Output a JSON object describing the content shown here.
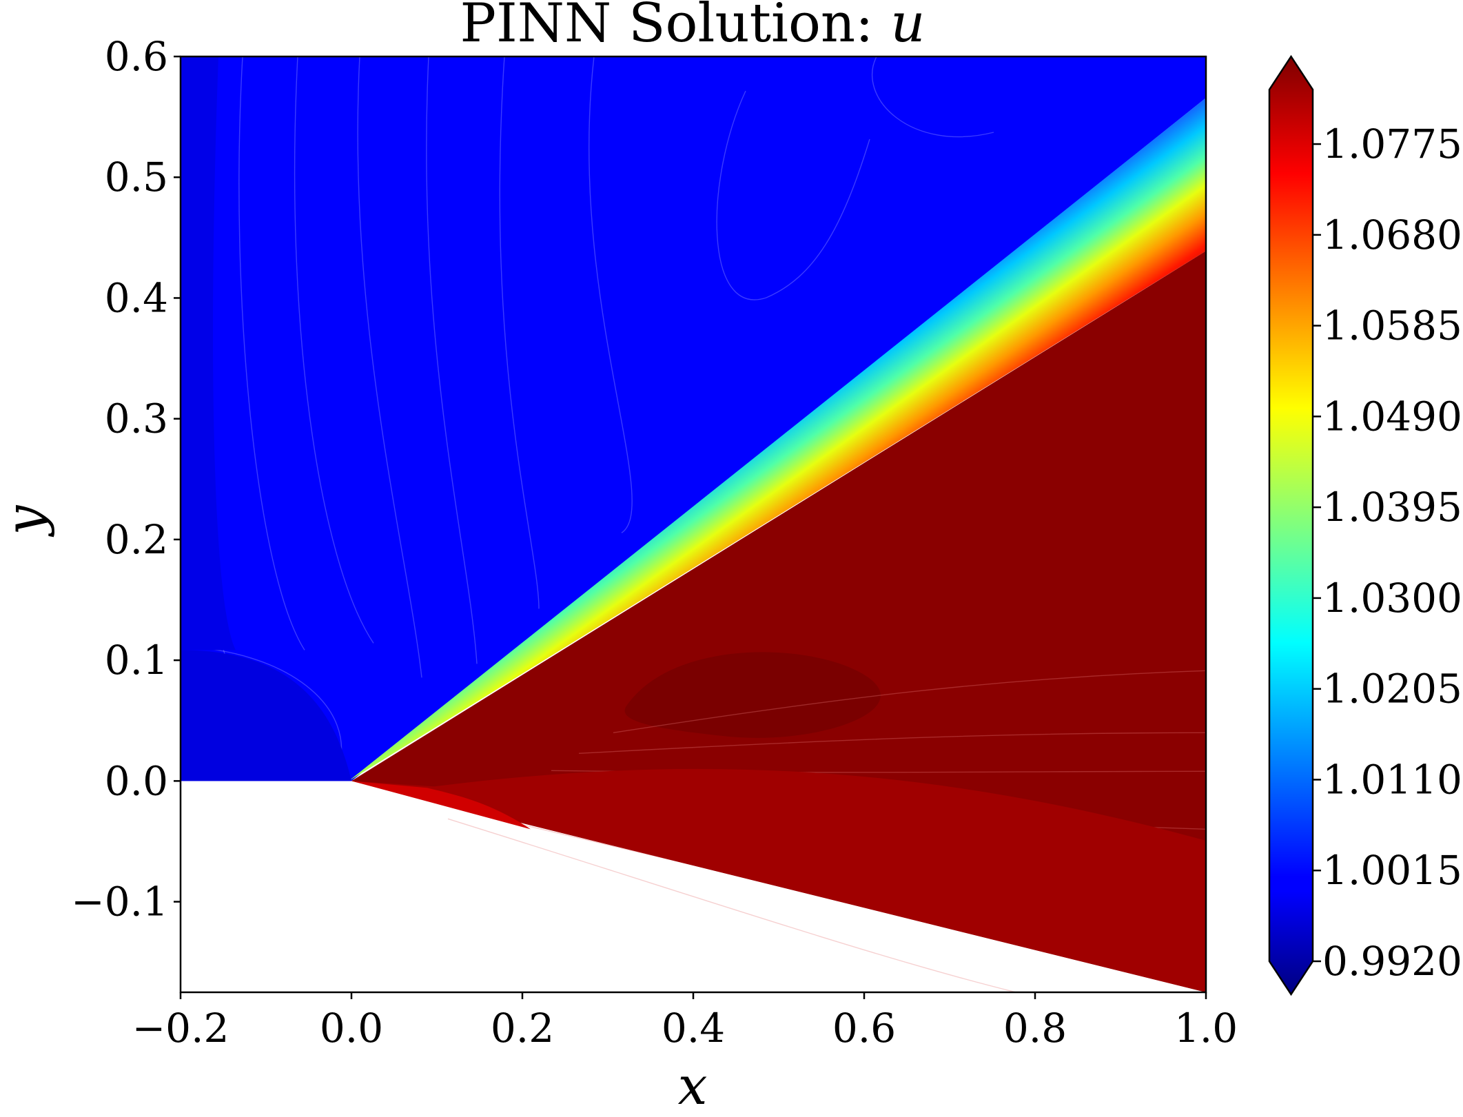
{
  "chart_data": {
    "type": "heatmap",
    "title": "PINN Solution: ",
    "title_variable": "u",
    "xlabel": "x",
    "ylabel": "y",
    "xlim": [
      -0.2,
      1.0
    ],
    "ylim": [
      -0.175,
      0.6
    ],
    "x_ticks": [
      -0.2,
      0.0,
      0.2,
      0.4,
      0.6,
      0.8,
      1.0
    ],
    "x_tick_labels": [
      "−0.2",
      "0.0",
      "0.2",
      "0.4",
      "0.6",
      "0.8",
      "1.0"
    ],
    "y_ticks": [
      -0.1,
      0.0,
      0.1,
      0.2,
      0.3,
      0.4,
      0.5,
      0.6
    ],
    "y_tick_labels": [
      "−0.1",
      "0.0",
      "0.1",
      "0.2",
      "0.3",
      "0.4",
      "0.5",
      "0.6"
    ],
    "colormap": "jet",
    "colorbar": {
      "min": 0.992,
      "max": 1.0832,
      "extend": "both",
      "ticks": [
        0.992,
        1.0015,
        1.011,
        1.0205,
        1.03,
        1.0395,
        1.049,
        1.0585,
        1.068,
        1.0775
      ],
      "tick_labels": [
        "0.9920",
        "1.0015",
        "1.0110",
        "1.0205",
        "1.0300",
        "1.0395",
        "1.0490",
        "1.0585",
        "1.0680",
        "1.0775"
      ]
    },
    "domain": {
      "wall_corner": [
        0.0,
        0.0
      ],
      "lower_wall_end": [
        1.0,
        -0.175
      ],
      "upstream_floor_y": 0.0
    },
    "field": {
      "upstream_value": 1.0,
      "downstream_value": 1.082,
      "shock_angle_deg_at_x1": [
        23.7,
        29.5
      ],
      "shock_origin": [
        0.0,
        0.0
      ]
    },
    "colors": {
      "upstream": "#0000ff",
      "downstream": "#8a0000",
      "axes": "#000000",
      "background": "#ffffff"
    }
  }
}
